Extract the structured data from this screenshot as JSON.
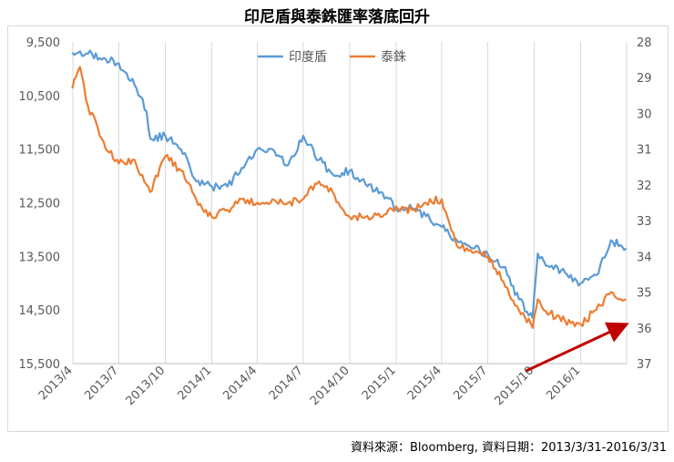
{
  "chart_data": {
    "type": "line",
    "title": "印尼盾與泰銖匯率落底回升",
    "xlabel": "",
    "ylabel_left": "",
    "ylabel_right": "",
    "x_ticks": [
      "2013/4",
      "2013/7",
      "2013/10",
      "2014/1",
      "2014/4",
      "2014/7",
      "2014/10",
      "2015/1",
      "2015/4",
      "2015/7",
      "2015/10",
      "2016/1"
    ],
    "y_left_ticks": [
      "9,500",
      "10,500",
      "11,500",
      "12,500",
      "13,500",
      "14,500",
      "15,500"
    ],
    "y_right_ticks": [
      "28",
      "29",
      "30",
      "31",
      "32",
      "33",
      "34",
      "35",
      "36",
      "37"
    ],
    "y_left_range": [
      15500,
      9500
    ],
    "y_right_range": [
      37,
      28
    ],
    "y_left_inverted": true,
    "y_right_inverted": true,
    "grid": "vertical",
    "legend_position": "top-center",
    "series": [
      {
        "name": "印度盾",
        "axis": "left",
        "color": "#5b9bd5",
        "x": [
          "2013/3/31",
          "2013/5/1",
          "2013/6/1",
          "2013/7/1",
          "2013/8/1",
          "2013/8/25",
          "2013/9/1",
          "2013/10/1",
          "2013/11/1",
          "2013/12/1",
          "2014/1/1",
          "2014/2/1",
          "2014/3/1",
          "2014/4/1",
          "2014/5/1",
          "2014/6/1",
          "2014/7/1",
          "2014/8/1",
          "2014/9/1",
          "2014/10/1",
          "2014/11/1",
          "2014/12/1",
          "2015/1/1",
          "2015/2/1",
          "2015/3/1",
          "2015/4/1",
          "2015/5/1",
          "2015/6/1",
          "2015/7/1",
          "2015/8/1",
          "2015/9/1",
          "2015/9/28",
          "2015/10/8",
          "2015/11/1",
          "2015/12/1",
          "2016/1/1",
          "2016/2/1",
          "2016/3/1",
          "2016/3/31"
        ],
        "values": [
          9700,
          9720,
          9800,
          9900,
          10300,
          10800,
          11300,
          11250,
          11500,
          12100,
          12200,
          12200,
          11850,
          11500,
          11500,
          11800,
          11250,
          11700,
          12000,
          11900,
          12150,
          12300,
          12600,
          12600,
          12750,
          12950,
          13200,
          13350,
          13450,
          13700,
          14300,
          14650,
          13450,
          13700,
          13800,
          14000,
          13850,
          13200,
          13350
        ]
      },
      {
        "name": "泰銖",
        "axis": "right",
        "color": "#ed7d31",
        "x": [
          "2013/3/31",
          "2013/4/15",
          "2013/5/1",
          "2013/6/1",
          "2013/7/1",
          "2013/8/1",
          "2013/9/1",
          "2013/10/1",
          "2013/11/1",
          "2013/12/1",
          "2014/1/1",
          "2014/2/1",
          "2014/3/1",
          "2014/4/1",
          "2014/5/1",
          "2014/6/1",
          "2014/7/1",
          "2014/8/1",
          "2014/9/1",
          "2014/10/1",
          "2014/11/1",
          "2014/12/1",
          "2015/1/1",
          "2015/2/1",
          "2015/3/1",
          "2015/4/1",
          "2015/5/1",
          "2015/6/1",
          "2015/7/1",
          "2015/8/1",
          "2015/9/1",
          "2015/9/28",
          "2015/10/8",
          "2015/11/1",
          "2015/12/1",
          "2016/1/1",
          "2016/2/1",
          "2016/3/1",
          "2016/3/31"
        ],
        "values": [
          29.3,
          28.7,
          29.8,
          30.8,
          31.4,
          31.3,
          32.2,
          31.2,
          31.6,
          32.4,
          32.9,
          32.7,
          32.4,
          32.5,
          32.4,
          32.5,
          32.4,
          31.9,
          32.3,
          32.9,
          32.9,
          32.9,
          32.6,
          32.7,
          32.5,
          32.4,
          33.7,
          33.9,
          34.0,
          34.7,
          35.5,
          36.0,
          35.2,
          35.6,
          35.8,
          35.9,
          35.5,
          35.0,
          35.2
        ]
      }
    ],
    "annotation": "red arrow pointing up-right"
  },
  "footer": {
    "source": "資料來源：Bloomberg, 資料日期：2013/3/31-2016/3/31"
  }
}
